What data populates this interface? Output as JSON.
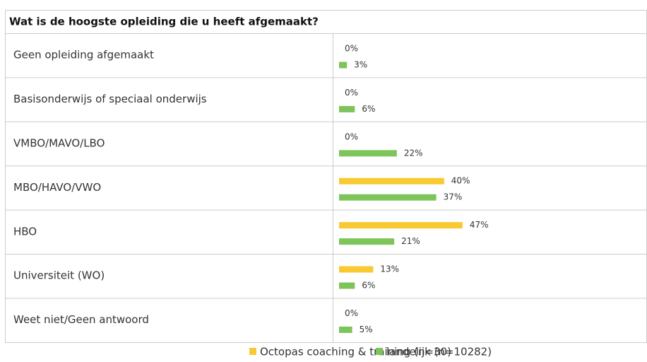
{
  "chart_data": {
    "type": "bar",
    "orientation": "horizontal",
    "title": "Wat is de hoogste opleiding die u heeft afgemaakt?",
    "categories": [
      "Geen opleiding afgemaakt",
      "Basisonderwijs of speciaal onderwijs",
      "VMBO/MAVO/LBO",
      "MBO/HAVO/VWO",
      "HBO",
      "Universiteit (WO)",
      "Weet niet/Geen antwoord"
    ],
    "series": [
      {
        "name": "Octopas coaching & training (n=30)",
        "color": "#f9c932",
        "values": [
          0,
          0,
          0,
          40,
          47,
          13,
          0
        ],
        "value_labels": [
          "0%",
          "0%",
          "0%",
          "40%",
          "47%",
          "13%",
          "0%"
        ]
      },
      {
        "name": "landelijk (n=10282)",
        "color": "#7dc45a",
        "values": [
          3,
          6,
          22,
          37,
          21,
          6,
          5
        ],
        "value_labels": [
          "3%",
          "6%",
          "22%",
          "37%",
          "21%",
          "6%",
          "5%"
        ]
      }
    ],
    "legend": "bottom"
  }
}
